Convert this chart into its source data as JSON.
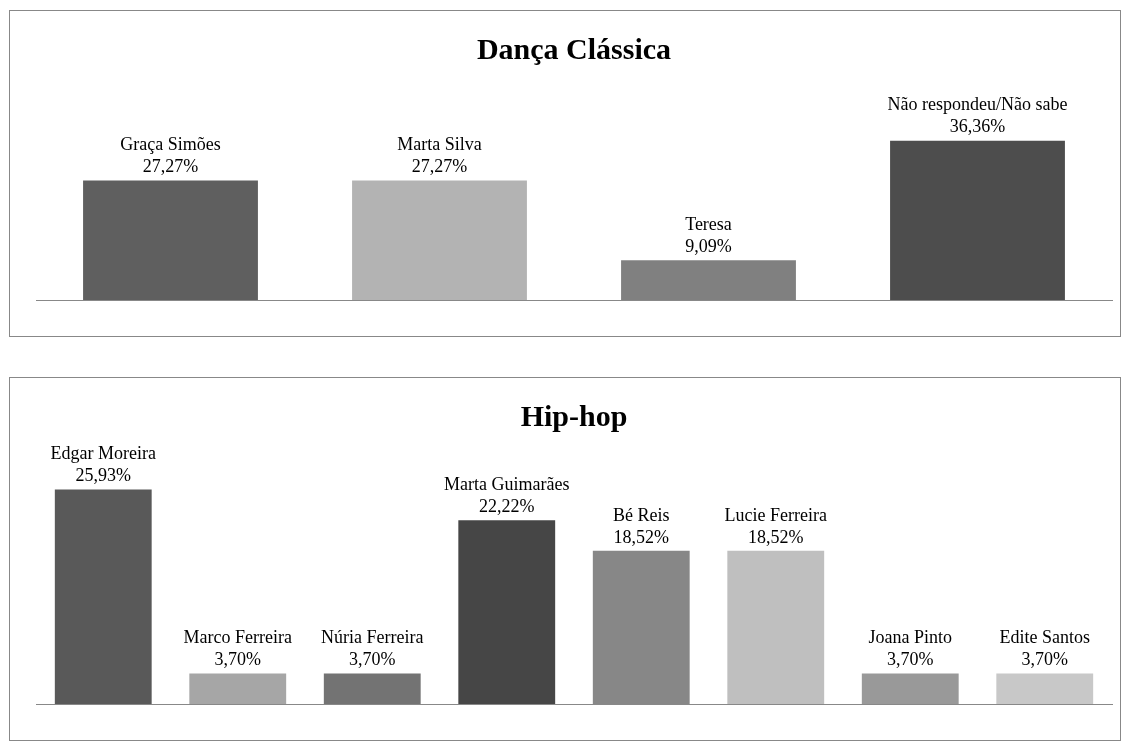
{
  "chart_data": [
    {
      "type": "bar",
      "title": "Dança Clássica",
      "categories": [
        "Graça Simões",
        "Marta Silva",
        "Teresa",
        "Não respondeu/Não sabe"
      ],
      "values": [
        27.27,
        27.27,
        9.09,
        36.36
      ],
      "colors": [
        "#5f5f5f",
        "#b3b3b3",
        "#808080",
        "#4d4d4d"
      ],
      "value_labels": [
        "27,27%",
        "27,27%",
        "9,09%",
        "36,36%"
      ],
      "tick_labels": false,
      "grid": false,
      "legend": false
    },
    {
      "type": "bar",
      "title": "Hip-hop",
      "categories": [
        "Edgar Moreira",
        "Marco Ferreira",
        "Núria Ferreira",
        "Marta Guimarães",
        "Bé Reis",
        "Lucie Ferreira",
        "Joana Pinto",
        "Edite Santos"
      ],
      "values": [
        25.93,
        3.7,
        3.7,
        22.22,
        18.52,
        18.52,
        3.7,
        3.7
      ],
      "colors": [
        "#595959",
        "#a6a6a6",
        "#737373",
        "#464646",
        "#878787",
        "#bfbfbf",
        "#999999",
        "#c8c8c8"
      ],
      "value_labels": [
        "25,93%",
        "3,70%",
        "3,70%",
        "22,22%",
        "18,52%",
        "18,52%",
        "3,70%",
        "3,70%"
      ],
      "tick_labels": false,
      "grid": false,
      "legend": false
    }
  ]
}
